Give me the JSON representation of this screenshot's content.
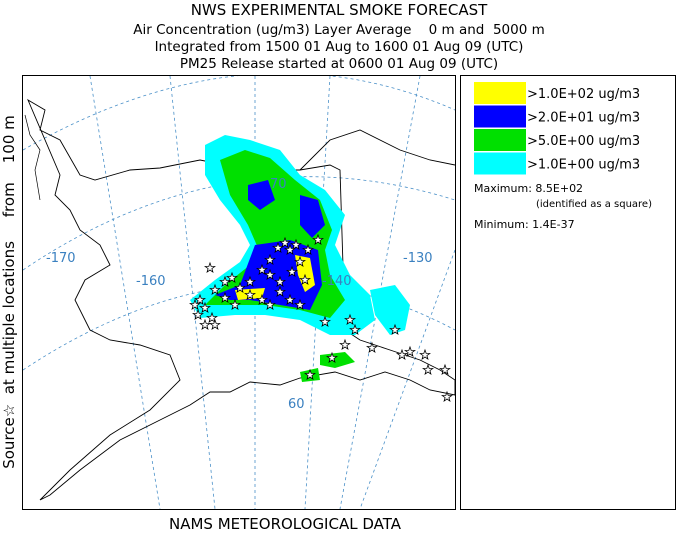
{
  "header": {
    "title": "NWS EXPERIMENTAL SMOKE FORECAST",
    "lines": [
      "Air Concentration (ug/m3) Layer Average    0 m and  5000 m",
      "Integrated from 1500 01 Aug to 1600 01 Aug 09 (UTC)",
      "PM25 Release started at 0600 01 Aug 09 (UTC)"
    ]
  },
  "side_label": "Source☆  at multiple locations     from    100 m",
  "footer": "NAMS METEOROLOGICAL DATA",
  "map": {
    "labels": [
      "-170",
      "-160",
      "-140",
      "-130",
      "70",
      "60"
    ]
  },
  "legend": {
    "items": [
      {
        "label": ">1.0E+02 ug/m3",
        "color": "#ffff00"
      },
      {
        "label": ">2.0E+01 ug/m3",
        "color": "#0000ff"
      },
      {
        "label": ">5.0E+00 ug/m3",
        "color": "#00e000"
      },
      {
        "label": ">1.0E+00 ug/m3",
        "color": "#00ffff"
      }
    ],
    "maximum": "Maximum: 8.5E+02",
    "maximum_note": "(identified as a square)",
    "minimum": "Minimum: 1.4E-37"
  }
}
